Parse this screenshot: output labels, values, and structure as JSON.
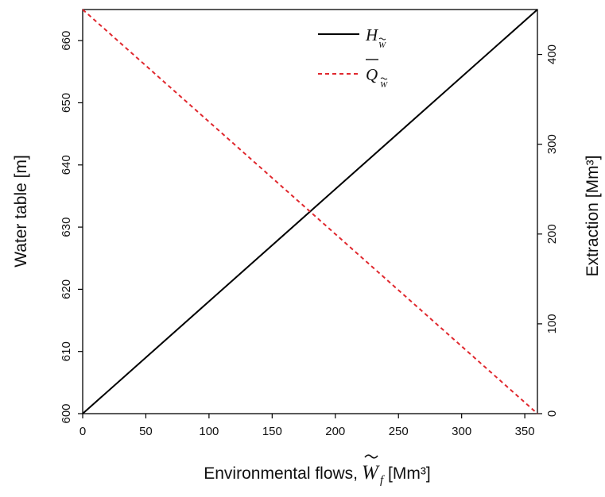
{
  "chart_data": {
    "type": "line",
    "xlabel": "Environmental flows,",
    "xlabel_symbol": "W",
    "xlabel_symbol_sub": "f",
    "xlabel_unit": "[Mm³]",
    "ylabel_left": "Water table [m]",
    "ylabel_right": "Extraction  [Mm³]",
    "xlim": [
      0,
      360
    ],
    "ylim_left": [
      600,
      665
    ],
    "ylim_right": [
      0,
      450
    ],
    "x_ticks": [
      0,
      50,
      100,
      150,
      200,
      250,
      300,
      350
    ],
    "y_left_ticks": [
      600,
      610,
      620,
      630,
      640,
      650,
      660
    ],
    "y_right_ticks": [
      0,
      100,
      200,
      300,
      400
    ],
    "grid": false,
    "legend_position": "top-center",
    "series": [
      {
        "name": "H",
        "name_sub": "W",
        "axis": "left",
        "style": "solid",
        "color": "#000000",
        "x": [
          0,
          360
        ],
        "y": [
          600,
          665
        ]
      },
      {
        "name": "Q",
        "name_sub": "W",
        "axis": "right",
        "style": "dashed",
        "color": "#e0282e",
        "x": [
          0,
          360
        ],
        "y": [
          450,
          0
        ]
      }
    ]
  }
}
